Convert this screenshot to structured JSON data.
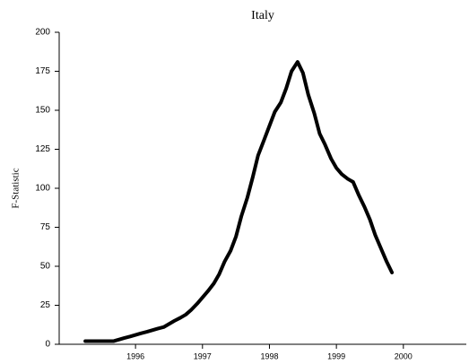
{
  "chart_data": {
    "type": "line",
    "title": "Italy",
    "ylabel": "F-Statistic",
    "x": [
      1995.25,
      1995.33,
      1995.42,
      1995.5,
      1995.58,
      1995.67,
      1995.75,
      1995.83,
      1995.92,
      1996,
      1996.08,
      1996.17,
      1996.25,
      1996.33,
      1996.42,
      1996.5,
      1996.58,
      1996.67,
      1996.75,
      1996.83,
      1996.92,
      1997,
      1997.08,
      1997.17,
      1997.25,
      1997.33,
      1997.42,
      1997.5,
      1997.58,
      1997.67,
      1997.75,
      1997.83,
      1997.92,
      1998,
      1998.08,
      1998.17,
      1998.25,
      1998.33,
      1998.42,
      1998.5,
      1998.58,
      1998.67,
      1998.75,
      1998.83,
      1998.92,
      1999,
      1999.08,
      1999.17,
      1999.25,
      1999.33,
      1999.42,
      1999.5,
      1999.58,
      1999.67,
      1999.75,
      1999.83
    ],
    "series": [
      {
        "color": "#000000",
        "values": [
          2,
          2,
          2,
          2,
          2,
          2,
          3,
          4,
          5,
          6,
          7,
          8,
          9,
          10,
          11,
          13,
          15,
          17,
          19,
          22,
          26,
          30,
          34,
          39,
          45,
          53,
          60,
          69,
          82,
          94,
          107,
          121,
          131,
          140,
          149,
          155,
          164,
          175,
          181,
          174,
          160,
          148,
          135,
          128,
          119,
          113,
          109,
          106,
          104,
          96,
          88,
          80,
          70,
          61,
          53,
          46
        ]
      }
    ],
    "xlim": [
      1994.86,
      2000.94
    ],
    "xticks": [
      1996,
      1997,
      1998,
      1999,
      2000
    ],
    "ylim": [
      0,
      200
    ],
    "yticks": [
      0,
      25,
      50,
      75,
      100,
      125,
      150,
      175,
      200
    ]
  }
}
